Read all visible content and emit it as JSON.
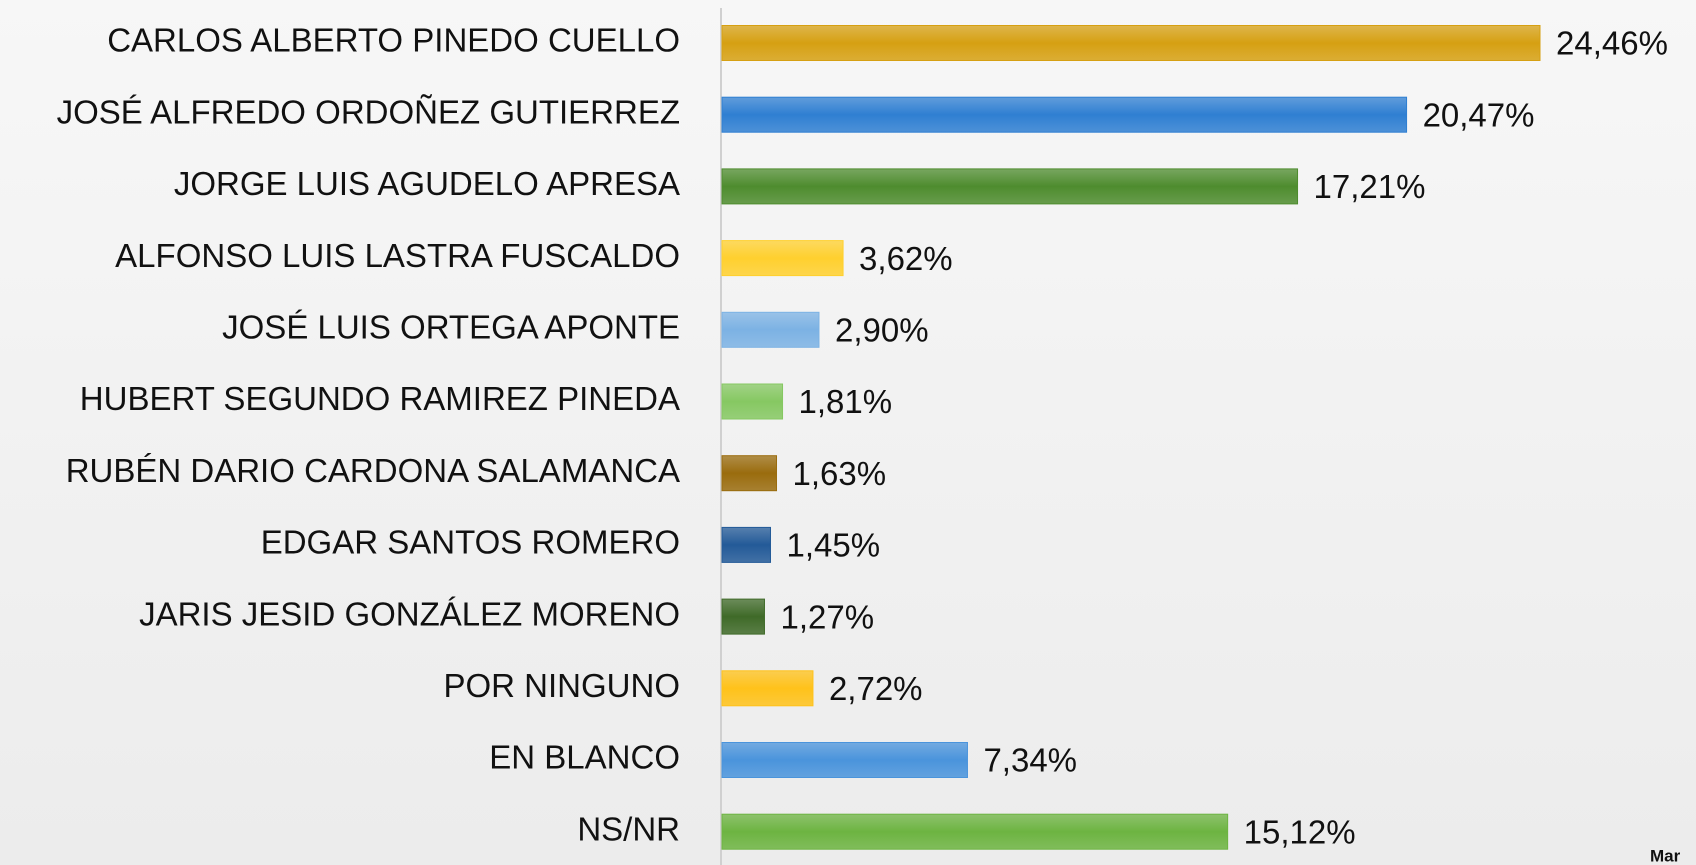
{
  "chart_data": {
    "type": "bar",
    "orientation": "horizontal",
    "categories": [
      "CARLOS ALBERTO PINEDO CUELLO",
      "JOSÉ ALFREDO ORDOÑEZ GUTIERREZ",
      "JORGE LUIS AGUDELO APRESA",
      "ALFONSO LUIS LASTRA FUSCALDO",
      "JOSÉ LUIS ORTEGA APONTE",
      "HUBERT SEGUNDO RAMIREZ PINEDA",
      "RUBÉN DARIO CARDONA SALAMANCA",
      "EDGAR SANTOS ROMERO",
      "JARIS JESID GONZÁLEZ MORENO",
      "POR NINGUNO",
      "EN BLANCO",
      "NS/NR"
    ],
    "values": [
      24.46,
      20.47,
      17.21,
      3.62,
      2.9,
      1.81,
      1.63,
      1.45,
      1.27,
      2.72,
      7.34,
      15.12
    ],
    "value_labels": [
      "24,46%",
      "20,47%",
      "17,21%",
      "3,62%",
      "2,90%",
      "1,81%",
      "1,63%",
      "1,45%",
      "1,27%",
      "2,72%",
      "7,34%",
      "15,12%"
    ],
    "colors": [
      "#d6a012",
      "#2f7fd2",
      "#4e8c2e",
      "#ffd02e",
      "#7cb2e4",
      "#86c862",
      "#9a6c0e",
      "#235a98",
      "#3f6a28",
      "#ffc21a",
      "#4a94dc",
      "#6db441"
    ],
    "annotation": "Mar"
  }
}
